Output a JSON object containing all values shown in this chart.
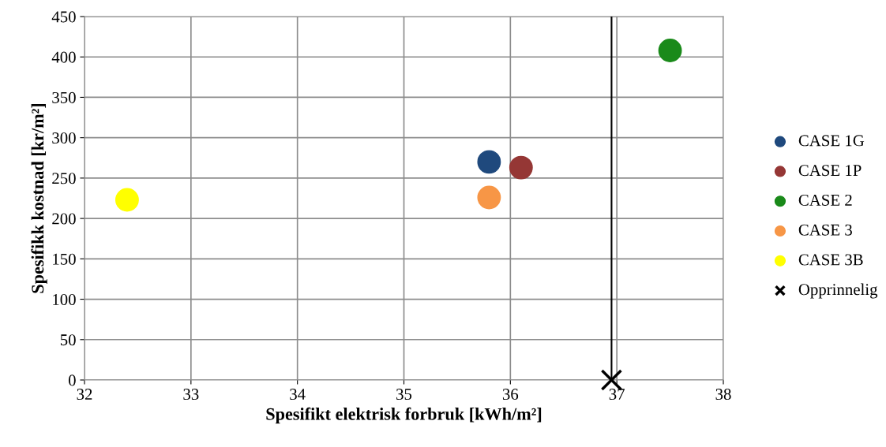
{
  "chart_data": {
    "type": "scatter",
    "xlabel": "Spesifikt elektrisk forbruk [kWh/m²]",
    "ylabel": "Spesifikk kostnad [kr/m²]",
    "xlim": [
      32,
      38
    ],
    "xticks": [
      32,
      33,
      34,
      35,
      36,
      37,
      38
    ],
    "ylim": [
      0,
      450
    ],
    "yticks": [
      0,
      50,
      100,
      150,
      200,
      250,
      300,
      350,
      400,
      450
    ],
    "grid": true,
    "legend": "right",
    "marker": "circle",
    "series": [
      {
        "name": "CASE 1G",
        "color": "#1f497d",
        "x": [
          35.8
        ],
        "values": [
          270
        ]
      },
      {
        "name": "CASE 1P",
        "color": "#953735",
        "x": [
          36.1
        ],
        "values": [
          263
        ]
      },
      {
        "name": "CASE 2",
        "color": "#1a8a1a",
        "x": [
          37.5
        ],
        "values": [
          408
        ]
      },
      {
        "name": "CASE 3",
        "color": "#f79646",
        "x": [
          35.8
        ],
        "values": [
          226
        ]
      },
      {
        "name": "CASE 3B",
        "color": "#ffff00",
        "x": [
          32.4
        ],
        "values": [
          223
        ]
      },
      {
        "name": "Opprinnelig",
        "color": "#000000",
        "x": [
          36.95
        ],
        "values": [
          0
        ],
        "marker": "cross"
      }
    ],
    "ref_lines": [
      {
        "axis": "x",
        "value": 36.95,
        "color": "#000000"
      }
    ]
  }
}
